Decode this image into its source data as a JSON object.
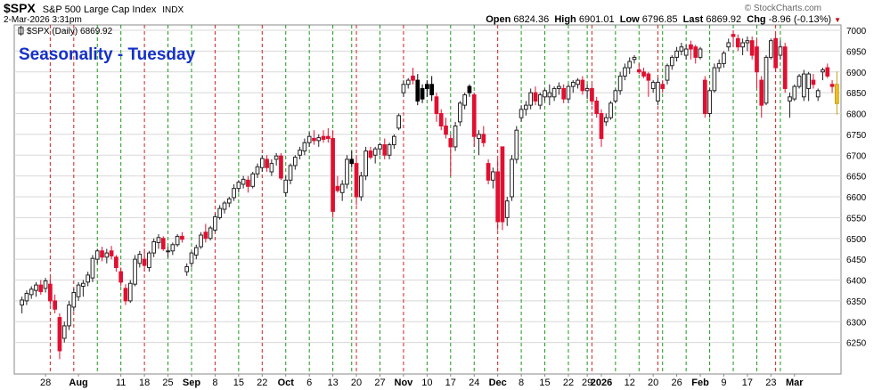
{
  "header": {
    "symbol": "$SPX",
    "name": "S&P 500 Large Cap Index",
    "exchange": "INDX",
    "datetime": "2-Mar-2026 3:31pm",
    "watermark": "© StockCharts.com",
    "open_label": "Open",
    "open": "6824.36",
    "high_label": "High",
    "high": "6901.01",
    "low_label": "Low",
    "low": "6796.85",
    "last_label": "Last",
    "last": "6869.92",
    "chg_label": "Chg",
    "chg": "-8.96 (-0.13%)",
    "chg_arrow": "down-triangle-icon"
  },
  "legend": {
    "text": "$SPX (Daily) 6869.92",
    "icon": "candle-legend-icon"
  },
  "annotation": {
    "text": "Seasonality - Tuesday",
    "color": "#1530c8"
  },
  "colors": {
    "down": "#e01030",
    "up_outline": "#222222",
    "highlight": "#f0c020",
    "green_line": "#1a9a1a",
    "red_line": "#d42020",
    "grid": "#d8d8d8"
  },
  "chart_data": {
    "type": "candlestick",
    "y_axis": {
      "min": 6200,
      "max": 7000,
      "ticks": [
        6250,
        6300,
        6350,
        6400,
        6450,
        6500,
        6550,
        6600,
        6650,
        6700,
        6750,
        6800,
        6850,
        6900,
        6950,
        7000
      ],
      "side": "right"
    },
    "x_labels": [
      "28",
      "Aug",
      "11",
      "18",
      "25",
      "Sep",
      "8",
      "15",
      "22",
      "Oct",
      "6",
      "13",
      "20",
      "27",
      "Nov",
      "10",
      "17",
      "24",
      "Dec",
      "8",
      "15",
      "22",
      "29",
      "2026",
      "12",
      "20",
      "26",
      "Feb",
      "9",
      "17",
      "23",
      "Mar"
    ],
    "x_label_index": [
      5,
      12,
      21,
      26,
      31,
      36,
      41,
      46,
      51,
      56,
      61,
      66,
      71,
      76,
      81,
      86,
      91,
      96,
      101,
      106,
      111,
      116,
      120,
      123,
      129,
      134,
      139,
      144,
      149,
      154,
      159,
      164
    ],
    "bold_labels": [
      "Aug",
      "Sep",
      "Oct",
      "Nov",
      "Dec",
      "2026",
      "Feb",
      "Mar"
    ],
    "tuesday_lines": {
      "green": [
        16,
        21,
        31,
        36,
        46,
        56,
        61,
        66,
        70,
        76,
        86,
        91,
        96,
        106,
        111,
        116,
        120,
        126,
        131,
        136,
        141,
        146,
        151,
        156,
        161
      ],
      "red": [
        6,
        11,
        26,
        41,
        51,
        71,
        81,
        101,
        121,
        135,
        160
      ]
    },
    "candles": [
      [
        6340,
        6360,
        6320,
        6352,
        "u"
      ],
      [
        6350,
        6375,
        6340,
        6368,
        "u"
      ],
      [
        6365,
        6385,
        6355,
        6378,
        "u"
      ],
      [
        6375,
        6395,
        6360,
        6388,
        "u"
      ],
      [
        6388,
        6400,
        6365,
        6372,
        "d"
      ],
      [
        6380,
        6405,
        6370,
        6398,
        "u"
      ],
      [
        6390,
        6405,
        6340,
        6350,
        "d"
      ],
      [
        6350,
        6365,
        6320,
        6330,
        "d"
      ],
      [
        6310,
        6320,
        6210,
        6230,
        "d"
      ],
      [
        6260,
        6300,
        6250,
        6290,
        "u"
      ],
      [
        6290,
        6350,
        6280,
        6340,
        "u"
      ],
      [
        6335,
        6380,
        6325,
        6370,
        "u"
      ],
      [
        6360,
        6395,
        6350,
        6388,
        "u"
      ],
      [
        6385,
        6400,
        6360,
        6392,
        "u"
      ],
      [
        6395,
        6420,
        6385,
        6412,
        "u"
      ],
      [
        6405,
        6460,
        6395,
        6452,
        "u"
      ],
      [
        6450,
        6475,
        6440,
        6470,
        "u"
      ],
      [
        6470,
        6480,
        6445,
        6455,
        "d"
      ],
      [
        6455,
        6475,
        6440,
        6465,
        "u"
      ],
      [
        6470,
        6482,
        6450,
        6458,
        "d"
      ],
      [
        6455,
        6460,
        6420,
        6430,
        "d"
      ],
      [
        6420,
        6430,
        6385,
        6395,
        "d"
      ],
      [
        6380,
        6390,
        6340,
        6350,
        "d"
      ],
      [
        6350,
        6400,
        6345,
        6392,
        "u"
      ],
      [
        6390,
        6460,
        6385,
        6450,
        "u"
      ],
      [
        6440,
        6470,
        6430,
        6462,
        "u"
      ],
      [
        6450,
        6475,
        6420,
        6435,
        "d"
      ],
      [
        6430,
        6470,
        6420,
        6465,
        "u"
      ],
      [
        6465,
        6500,
        6455,
        6492,
        "u"
      ],
      [
        6490,
        6510,
        6475,
        6502,
        "u"
      ],
      [
        6500,
        6505,
        6470,
        6475,
        "d"
      ],
      [
        6470,
        6480,
        6455,
        6470,
        "u"
      ],
      [
        6470,
        6490,
        6460,
        6485,
        "u"
      ],
      [
        6485,
        6510,
        6480,
        6505,
        "u"
      ],
      [
        6505,
        6515,
        6490,
        6498,
        "d"
      ],
      [
        6420,
        6440,
        6410,
        6432,
        "u"
      ],
      [
        6440,
        6470,
        6430,
        6465,
        "u"
      ],
      [
        6460,
        6485,
        6450,
        6478,
        "u"
      ],
      [
        6480,
        6515,
        6475,
        6508,
        "u"
      ],
      [
        6515,
        6535,
        6490,
        6500,
        "d"
      ],
      [
        6500,
        6530,
        6495,
        6525,
        "u"
      ],
      [
        6520,
        6560,
        6515,
        6552,
        "u"
      ],
      [
        6550,
        6580,
        6545,
        6572,
        "u"
      ],
      [
        6570,
        6590,
        6560,
        6585,
        "u"
      ],
      [
        6585,
        6600,
        6575,
        6595,
        "u"
      ],
      [
        6598,
        6630,
        6590,
        6620,
        "u"
      ],
      [
        6620,
        6640,
        6610,
        6635,
        "u"
      ],
      [
        6630,
        6650,
        6620,
        6642,
        "u"
      ],
      [
        6640,
        6650,
        6610,
        6625,
        "d"
      ],
      [
        6625,
        6660,
        6620,
        6655,
        "u"
      ],
      [
        6655,
        6680,
        6645,
        6672,
        "u"
      ],
      [
        6670,
        6700,
        6660,
        6692,
        "u"
      ],
      [
        6690,
        6700,
        6660,
        6670,
        "d"
      ],
      [
        6660,
        6690,
        6650,
        6680,
        "u"
      ],
      [
        6690,
        6705,
        6675,
        6698,
        "u"
      ],
      [
        6698,
        6705,
        6640,
        6645,
        "d"
      ],
      [
        6610,
        6650,
        6600,
        6640,
        "u"
      ],
      [
        6640,
        6680,
        6630,
        6675,
        "u"
      ],
      [
        6675,
        6700,
        6665,
        6695,
        "u"
      ],
      [
        6700,
        6720,
        6690,
        6712,
        "u"
      ],
      [
        6710,
        6740,
        6700,
        6730,
        "u"
      ],
      [
        6730,
        6755,
        6720,
        6745,
        "u"
      ],
      [
        6740,
        6760,
        6725,
        6735,
        "d"
      ],
      [
        6735,
        6750,
        6720,
        6742,
        "u"
      ],
      [
        6745,
        6760,
        6730,
        6738,
        "d"
      ],
      [
        6745,
        6765,
        6730,
        6740,
        "d"
      ],
      [
        6740,
        6760,
        6550,
        6565,
        "d"
      ],
      [
        6625,
        6650,
        6610,
        6615,
        "d"
      ],
      [
        6610,
        6640,
        6590,
        6630,
        "u"
      ],
      [
        6630,
        6700,
        6620,
        6690,
        "u"
      ],
      [
        6690,
        6710,
        6670,
        6680,
        "b"
      ],
      [
        6680,
        6700,
        6580,
        6600,
        "d"
      ],
      [
        6600,
        6660,
        6590,
        6650,
        "u"
      ],
      [
        6650,
        6720,
        6640,
        6710,
        "u"
      ],
      [
        6710,
        6720,
        6690,
        6695,
        "d"
      ],
      [
        6700,
        6720,
        6680,
        6715,
        "u"
      ],
      [
        6715,
        6730,
        6700,
        6725,
        "u"
      ],
      [
        6725,
        6740,
        6690,
        6700,
        "d"
      ],
      [
        6700,
        6730,
        6690,
        6725,
        "u"
      ],
      [
        6725,
        6750,
        6715,
        6745,
        "u"
      ],
      [
        6765,
        6800,
        6760,
        6795,
        "u"
      ],
      [
        6850,
        6880,
        6840,
        6870,
        "u"
      ],
      [
        6870,
        6885,
        6860,
        6880,
        "u"
      ],
      [
        6890,
        6910,
        6870,
        6880,
        "d"
      ],
      [
        6880,
        6895,
        6820,
        6830,
        "b"
      ],
      [
        6835,
        6870,
        6825,
        6860,
        "b"
      ],
      [
        6860,
        6880,
        6840,
        6870,
        "b"
      ],
      [
        6870,
        6890,
        6830,
        6845,
        "b"
      ],
      [
        6840,
        6850,
        6780,
        6800,
        "d"
      ],
      [
        6800,
        6810,
        6760,
        6770,
        "d"
      ],
      [
        6770,
        6790,
        6740,
        6750,
        "d"
      ],
      [
        6740,
        6750,
        6650,
        6720,
        "d"
      ],
      [
        6720,
        6780,
        6710,
        6770,
        "u"
      ],
      [
        6780,
        6830,
        6770,
        6825,
        "u"
      ],
      [
        6820,
        6850,
        6810,
        6845,
        "u"
      ],
      [
        6850,
        6870,
        6840,
        6865,
        "b"
      ],
      [
        6845,
        6850,
        6720,
        6745,
        "d"
      ],
      [
        6740,
        6760,
        6700,
        6750,
        "u"
      ],
      [
        6750,
        6770,
        6720,
        6730,
        "d"
      ],
      [
        6680,
        6690,
        6630,
        6640,
        "d"
      ],
      [
        6640,
        6670,
        6620,
        6660,
        "u"
      ],
      [
        6660,
        6690,
        6520,
        6540,
        "d"
      ],
      [
        6540,
        6720,
        6520,
        6720,
        "d"
      ],
      [
        6550,
        6600,
        6530,
        6590,
        "u"
      ],
      [
        6600,
        6700,
        6590,
        6690,
        "u"
      ],
      [
        6690,
        6770,
        6680,
        6760,
        "u"
      ],
      [
        6790,
        6820,
        6780,
        6810,
        "u"
      ],
      [
        6810,
        6830,
        6795,
        6820,
        "u"
      ],
      [
        6820,
        6860,
        6810,
        6850,
        "u"
      ],
      [
        6850,
        6865,
        6820,
        6830,
        "d"
      ],
      [
        6820,
        6850,
        6810,
        6845,
        "u"
      ],
      [
        6840,
        6860,
        6830,
        6855,
        "u"
      ],
      [
        6850,
        6870,
        6820,
        6840,
        "u"
      ],
      [
        6840,
        6865,
        6830,
        6860,
        "u"
      ],
      [
        6860,
        6875,
        6845,
        6865,
        "u"
      ],
      [
        6860,
        6870,
        6825,
        6835,
        "d"
      ],
      [
        6835,
        6870,
        6825,
        6865,
        "u"
      ],
      [
        6865,
        6880,
        6850,
        6875,
        "u"
      ],
      [
        6870,
        6885,
        6860,
        6880,
        "u"
      ],
      [
        6880,
        6890,
        6845,
        6855,
        "d"
      ],
      [
        6855,
        6870,
        6835,
        6860,
        "u"
      ],
      [
        6860,
        6870,
        6820,
        6830,
        "d"
      ],
      [
        6830,
        6840,
        6790,
        6800,
        "d"
      ],
      [
        6800,
        6810,
        6720,
        6740,
        "d"
      ],
      [
        6780,
        6800,
        6770,
        6790,
        "u"
      ],
      [
        6790,
        6830,
        6785,
        6825,
        "u"
      ],
      [
        6830,
        6860,
        6825,
        6855,
        "u"
      ],
      [
        6855,
        6900,
        6845,
        6890,
        "u"
      ],
      [
        6890,
        6920,
        6880,
        6910,
        "u"
      ],
      [
        6910,
        6935,
        6895,
        6925,
        "u"
      ],
      [
        6930,
        6940,
        6920,
        6935,
        "u"
      ],
      [
        6905,
        6920,
        6895,
        6900,
        "d"
      ],
      [
        6900,
        6910,
        6885,
        6890,
        "d"
      ],
      [
        6880,
        6900,
        6840,
        6895,
        "d"
      ],
      [
        6860,
        6880,
        6850,
        6875,
        "u"
      ],
      [
        6875,
        6885,
        6820,
        6830,
        "u"
      ],
      [
        6860,
        6880,
        6850,
        6870,
        "d"
      ],
      [
        6880,
        6920,
        6870,
        6915,
        "u"
      ],
      [
        6915,
        6940,
        6905,
        6935,
        "u"
      ],
      [
        6935,
        6960,
        6925,
        6950,
        "u"
      ],
      [
        6950,
        6970,
        6940,
        6960,
        "u"
      ],
      [
        6940,
        6965,
        6930,
        6955,
        "u"
      ],
      [
        6955,
        6975,
        6930,
        6965,
        "d"
      ],
      [
        6960,
        6965,
        6920,
        6935,
        "d"
      ],
      [
        6935,
        6960,
        6930,
        6955,
        "u"
      ],
      [
        6880,
        6890,
        6790,
        6800,
        "d"
      ],
      [
        6800,
        6860,
        6790,
        6855,
        "u"
      ],
      [
        6855,
        6920,
        6850,
        6910,
        "u"
      ],
      [
        6910,
        6930,
        6900,
        6920,
        "u"
      ],
      [
        6920,
        6950,
        6910,
        6945,
        "u"
      ],
      [
        6960,
        6980,
        6950,
        6970,
        "u"
      ],
      [
        6985,
        7000,
        6960,
        6990,
        "d"
      ],
      [
        6980,
        6990,
        6950,
        6960,
        "d"
      ],
      [
        6960,
        6980,
        6940,
        6970,
        "u"
      ],
      [
        6970,
        6985,
        6950,
        6975,
        "u"
      ],
      [
        6975,
        6985,
        6930,
        6940,
        "d"
      ],
      [
        6960,
        6980,
        6860,
        6900,
        "d"
      ],
      [
        6880,
        6890,
        6790,
        6820,
        "d"
      ],
      [
        6825,
        6940,
        6820,
        6935,
        "u"
      ],
      [
        6935,
        6980,
        6930,
        6975,
        "u"
      ],
      [
        6980,
        6990,
        6900,
        6910,
        "d"
      ],
      [
        6940,
        6975,
        6930,
        6960,
        "u"
      ],
      [
        6960,
        6970,
        6850,
        6860,
        "d"
      ],
      [
        6830,
        6850,
        6790,
        6840,
        "u"
      ],
      [
        6835,
        6870,
        6830,
        6865,
        "u"
      ],
      [
        6865,
        6895,
        6860,
        6890,
        "u"
      ],
      [
        6895,
        6905,
        6830,
        6840,
        "u"
      ],
      [
        6860,
        6900,
        6830,
        6895,
        "u"
      ],
      [
        6870,
        6895,
        6860,
        6880,
        "d"
      ],
      [
        6840,
        6860,
        6830,
        6855,
        "u"
      ],
      [
        6900,
        6910,
        6880,
        6905,
        "u"
      ],
      [
        6910,
        6920,
        6885,
        6890,
        "d"
      ],
      [
        6870,
        6880,
        6850,
        6865,
        "d"
      ],
      [
        6824,
        6901,
        6797,
        6870,
        "h"
      ]
    ]
  }
}
